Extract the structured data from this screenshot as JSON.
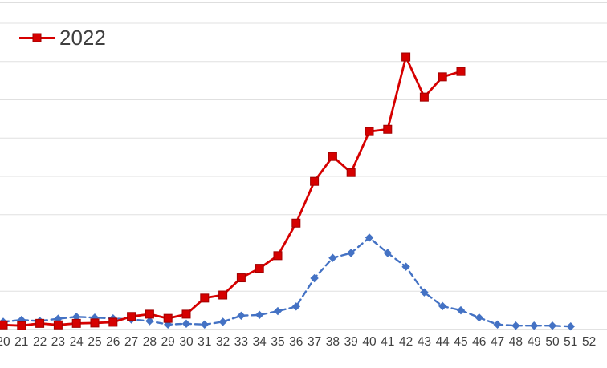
{
  "chart_data": {
    "type": "line",
    "x_label": "",
    "y_label": "",
    "x": [
      20,
      21,
      22,
      23,
      24,
      25,
      26,
      27,
      28,
      29,
      30,
      31,
      32,
      33,
      34,
      35,
      36,
      37,
      38,
      39,
      40,
      41,
      42,
      43,
      44,
      45,
      46,
      47,
      48,
      49,
      50,
      51,
      52
    ],
    "x_tick_labels": [
      "20",
      "21",
      "22",
      "23",
      "24",
      "25",
      "26",
      "27",
      "28",
      "29",
      "30",
      "31",
      "32",
      "33",
      "34",
      "35",
      "36",
      "37",
      "38",
      "39",
      "40",
      "41",
      "42",
      "43",
      "44",
      "45",
      "46",
      "47",
      "48",
      "49",
      "50",
      "51",
      "52"
    ],
    "y_ticks_visible": false,
    "y_unit": "gridline-units",
    "ylim": [
      0,
      8
    ],
    "grid": true,
    "legend": {
      "position": "top-left",
      "entries": [
        "2022"
      ]
    },
    "series": [
      {
        "name": "",
        "color": "#4472c4",
        "line_style": "dashed",
        "marker": "diamond",
        "values": [
          0.2,
          0.25,
          0.22,
          0.28,
          0.33,
          0.31,
          0.29,
          0.26,
          0.22,
          0.13,
          0.15,
          0.13,
          0.2,
          0.36,
          0.38,
          0.48,
          0.6,
          1.34,
          1.87,
          2.0,
          2.4,
          2.0,
          1.64,
          0.97,
          0.61,
          0.5,
          0.31,
          0.13,
          0.1,
          0.1,
          0.1,
          0.08,
          null
        ]
      },
      {
        "name": "2022",
        "color": "#d60000",
        "line_style": "solid",
        "marker": "square",
        "values": [
          0.12,
          0.1,
          0.16,
          0.12,
          0.16,
          0.17,
          0.19,
          0.34,
          0.4,
          0.29,
          0.4,
          0.82,
          0.9,
          1.35,
          1.6,
          1.93,
          2.78,
          3.87,
          4.52,
          4.1,
          5.17,
          5.23,
          7.12,
          6.07,
          6.6,
          6.74,
          null,
          null,
          null,
          null,
          null,
          null,
          null
        ]
      }
    ]
  },
  "colors": {
    "series_red": "#d60000",
    "series_red_marker_border": "#a00000",
    "series_blue": "#4472c4",
    "gridline": "#e0e0e0",
    "axis_line": "#d9d9d9",
    "top_border": "#d4d4d4",
    "tick_label": "#404040",
    "legend_text": "#3f3f3f",
    "background": "#ffffff"
  }
}
